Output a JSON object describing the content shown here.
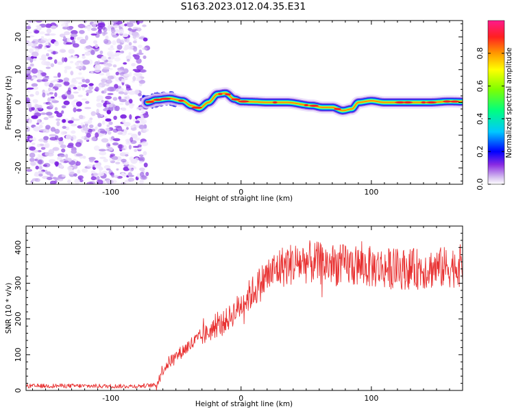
{
  "title": "S163.2023.012.04.35.E31",
  "colors": {
    "snr_line": "#e83030",
    "track": "#ff2020",
    "noise": "#8a2be2"
  },
  "chart_data": [
    {
      "type": "heatmap",
      "xlabel": "Height of straight line (km)",
      "ylabel": "Frequency (Hz)",
      "xlim": [
        -165,
        170
      ],
      "ylim": [
        -25,
        25
      ],
      "xticks": [
        -100,
        0,
        100
      ],
      "yticks": [
        20,
        10,
        0,
        -10,
        -20
      ],
      "noise_region_x": [
        -165,
        -72
      ],
      "ridge": {
        "x": [
          -72,
          -65,
          -55,
          -45,
          -38,
          -32,
          -25,
          -18,
          -12,
          -5,
          0,
          8,
          20,
          35,
          55,
          62,
          70,
          78,
          85,
          90,
          100,
          110,
          130,
          145,
          160,
          170
        ],
        "y": [
          0,
          0.8,
          1.2,
          0.5,
          -1.0,
          -1.8,
          0.0,
          2.5,
          2.8,
          1.0,
          0.3,
          0.2,
          0.0,
          0.0,
          -1.0,
          -1.5,
          -1.5,
          -2.5,
          -2.0,
          0.0,
          0.5,
          0.0,
          0.0,
          0.0,
          0.3,
          0.2
        ]
      },
      "colorbar": {
        "label": "Normalized spectral amplitude",
        "range": [
          0.0,
          1.0
        ],
        "ticks": [
          0.0,
          0.2,
          0.4,
          0.6,
          0.8
        ],
        "tick_labels": [
          "0.0",
          "0.2",
          "0.4",
          "0.6",
          "0.8"
        ]
      }
    },
    {
      "type": "line",
      "xlabel": "Height of straight line (km)",
      "ylabel": "SNR (10 * v/v)",
      "xlim": [
        -165,
        170
      ],
      "ylim": [
        0,
        460
      ],
      "xticks": [
        -100,
        0,
        100
      ],
      "yticks": [
        0,
        100,
        200,
        300,
        400
      ],
      "series": [
        {
          "x": [
            -165,
            -140,
            -100,
            -80,
            -65,
            -60,
            -55,
            -50,
            -45,
            -40,
            -30,
            -20,
            -10,
            0,
            10,
            20,
            30,
            40,
            50,
            60,
            80,
            100,
            120,
            140,
            160,
            170
          ],
          "y": [
            12,
            13,
            12,
            12,
            15,
            60,
            80,
            95,
            110,
            125,
            150,
            175,
            200,
            240,
            280,
            320,
            345,
            355,
            360,
            355,
            350,
            345,
            340,
            340,
            345,
            350
          ]
        }
      ]
    }
  ]
}
